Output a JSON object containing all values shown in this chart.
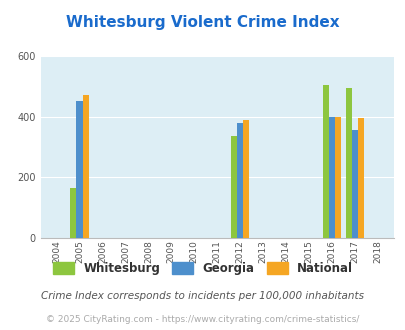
{
  "title": "Whitesburg Violent Crime Index",
  "years": [
    2004,
    2005,
    2006,
    2007,
    2008,
    2009,
    2010,
    2011,
    2012,
    2013,
    2014,
    2015,
    2016,
    2017,
    2018
  ],
  "whitesburg": [
    0,
    165,
    0,
    0,
    0,
    0,
    0,
    0,
    335,
    0,
    0,
    0,
    505,
    495,
    0
  ],
  "georgia": [
    0,
    450,
    0,
    0,
    0,
    0,
    0,
    0,
    380,
    0,
    0,
    0,
    400,
    355,
    0
  ],
  "national": [
    0,
    470,
    0,
    0,
    0,
    0,
    0,
    0,
    390,
    0,
    0,
    0,
    400,
    395,
    0
  ],
  "color_whitesburg": "#8dc63f",
  "color_georgia": "#4d8fcc",
  "color_national": "#f5a623",
  "bg_color": "#ddeef5",
  "ylim": [
    0,
    600
  ],
  "yticks": [
    0,
    200,
    400,
    600
  ],
  "legend_labels": [
    "Whitesburg",
    "Georgia",
    "National"
  ],
  "footer1": "Crime Index corresponds to incidents per 100,000 inhabitants",
  "footer2": "© 2025 CityRating.com - https://www.cityrating.com/crime-statistics/",
  "title_color": "#1a6bcc",
  "footer1_color": "#555555",
  "footer2_color": "#aaaaaa"
}
